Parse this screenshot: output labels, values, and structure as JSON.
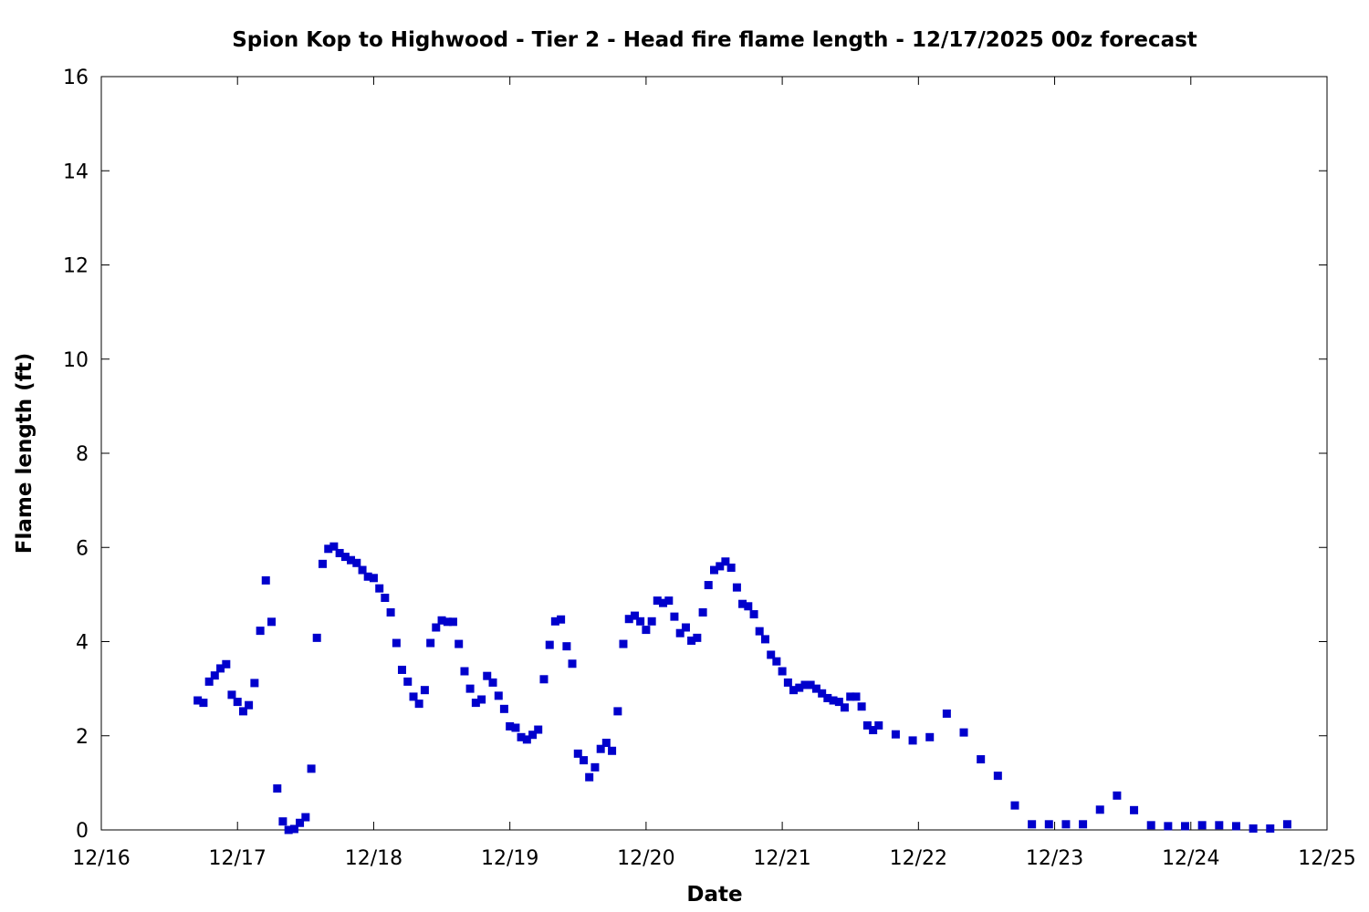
{
  "chart_data": {
    "type": "scatter",
    "title": "Spion Kop to Highwood - Tier 2 - Head fire flame length - 12/17/2025 00z forecast",
    "xlabel": "Date",
    "ylabel": "Flame length (ft)",
    "x_unit": "days since 12/16 00:00 (tick labels show dates)",
    "xlim": [
      0,
      9
    ],
    "ylim": [
      0,
      16
    ],
    "x_ticks": [
      {
        "value": 0,
        "label": "12/16"
      },
      {
        "value": 1,
        "label": "12/17"
      },
      {
        "value": 2,
        "label": "12/18"
      },
      {
        "value": 3,
        "label": "12/19"
      },
      {
        "value": 4,
        "label": "12/20"
      },
      {
        "value": 5,
        "label": "12/21"
      },
      {
        "value": 6,
        "label": "12/22"
      },
      {
        "value": 7,
        "label": "12/23"
      },
      {
        "value": 8,
        "label": "12/24"
      },
      {
        "value": 9,
        "label": "12/25"
      }
    ],
    "y_ticks": [
      {
        "value": 0,
        "label": "0"
      },
      {
        "value": 2,
        "label": "2"
      },
      {
        "value": 4,
        "label": "4"
      },
      {
        "value": 6,
        "label": "6"
      },
      {
        "value": 8,
        "label": "8"
      },
      {
        "value": 10,
        "label": "10"
      },
      {
        "value": 12,
        "label": "12"
      },
      {
        "value": 14,
        "label": "14"
      },
      {
        "value": 16,
        "label": "16"
      }
    ],
    "grid": false,
    "marker_color": "#0000cc",
    "series": [
      {
        "name": "",
        "points": [
          [
            0.708,
            2.75
          ],
          [
            0.75,
            2.7
          ],
          [
            0.792,
            3.15
          ],
          [
            0.833,
            3.28
          ],
          [
            0.875,
            3.43
          ],
          [
            0.917,
            3.52
          ],
          [
            0.958,
            2.87
          ],
          [
            1.0,
            2.72
          ],
          [
            1.042,
            2.52
          ],
          [
            1.083,
            2.65
          ],
          [
            1.125,
            3.12
          ],
          [
            1.167,
            4.23
          ],
          [
            1.208,
            5.3
          ],
          [
            1.25,
            4.42
          ],
          [
            1.292,
            0.88
          ],
          [
            1.333,
            0.18
          ],
          [
            1.375,
            0.0
          ],
          [
            1.417,
            0.02
          ],
          [
            1.458,
            0.15
          ],
          [
            1.5,
            0.27
          ],
          [
            1.542,
            1.3
          ],
          [
            1.583,
            4.08
          ],
          [
            1.625,
            5.65
          ],
          [
            1.667,
            5.97
          ],
          [
            1.708,
            6.02
          ],
          [
            1.75,
            5.88
          ],
          [
            1.792,
            5.8
          ],
          [
            1.833,
            5.73
          ],
          [
            1.875,
            5.67
          ],
          [
            1.917,
            5.52
          ],
          [
            1.958,
            5.38
          ],
          [
            2.0,
            5.35
          ],
          [
            2.042,
            5.13
          ],
          [
            2.083,
            4.93
          ],
          [
            2.125,
            4.62
          ],
          [
            2.167,
            3.97
          ],
          [
            2.208,
            3.4
          ],
          [
            2.25,
            3.15
          ],
          [
            2.292,
            2.83
          ],
          [
            2.333,
            2.68
          ],
          [
            2.375,
            2.97
          ],
          [
            2.417,
            3.97
          ],
          [
            2.458,
            4.3
          ],
          [
            2.5,
            4.45
          ],
          [
            2.542,
            4.42
          ],
          [
            2.583,
            4.42
          ],
          [
            2.625,
            3.95
          ],
          [
            2.667,
            3.37
          ],
          [
            2.708,
            3.0
          ],
          [
            2.75,
            2.7
          ],
          [
            2.792,
            2.77
          ],
          [
            2.833,
            3.27
          ],
          [
            2.875,
            3.13
          ],
          [
            2.917,
            2.85
          ],
          [
            2.958,
            2.57
          ],
          [
            3.0,
            2.2
          ],
          [
            3.042,
            2.17
          ],
          [
            3.083,
            1.97
          ],
          [
            3.125,
            1.92
          ],
          [
            3.167,
            2.02
          ],
          [
            3.208,
            2.13
          ],
          [
            3.25,
            3.2
          ],
          [
            3.292,
            3.93
          ],
          [
            3.333,
            4.43
          ],
          [
            3.375,
            4.47
          ],
          [
            3.417,
            3.9
          ],
          [
            3.458,
            3.53
          ],
          [
            3.5,
            1.62
          ],
          [
            3.542,
            1.48
          ],
          [
            3.583,
            1.12
          ],
          [
            3.625,
            1.33
          ],
          [
            3.667,
            1.72
          ],
          [
            3.708,
            1.85
          ],
          [
            3.75,
            1.68
          ],
          [
            3.792,
            2.52
          ],
          [
            3.833,
            3.95
          ],
          [
            3.875,
            4.48
          ],
          [
            3.917,
            4.55
          ],
          [
            3.958,
            4.43
          ],
          [
            4.0,
            4.25
          ],
          [
            4.042,
            4.43
          ],
          [
            4.083,
            4.87
          ],
          [
            4.125,
            4.82
          ],
          [
            4.167,
            4.87
          ],
          [
            4.208,
            4.53
          ],
          [
            4.25,
            4.18
          ],
          [
            4.292,
            4.3
          ],
          [
            4.333,
            4.02
          ],
          [
            4.375,
            4.08
          ],
          [
            4.417,
            4.62
          ],
          [
            4.458,
            5.2
          ],
          [
            4.5,
            5.52
          ],
          [
            4.542,
            5.6
          ],
          [
            4.583,
            5.7
          ],
          [
            4.625,
            5.57
          ],
          [
            4.667,
            5.15
          ],
          [
            4.708,
            4.8
          ],
          [
            4.75,
            4.75
          ],
          [
            4.792,
            4.58
          ],
          [
            4.833,
            4.22
          ],
          [
            4.875,
            4.05
          ],
          [
            4.917,
            3.72
          ],
          [
            4.958,
            3.58
          ],
          [
            5.0,
            3.37
          ],
          [
            5.042,
            3.13
          ],
          [
            5.083,
            2.97
          ],
          [
            5.125,
            3.02
          ],
          [
            5.167,
            3.08
          ],
          [
            5.208,
            3.08
          ],
          [
            5.25,
            3.0
          ],
          [
            5.292,
            2.9
          ],
          [
            5.333,
            2.8
          ],
          [
            5.375,
            2.75
          ],
          [
            5.417,
            2.72
          ],
          [
            5.458,
            2.6
          ],
          [
            5.5,
            2.83
          ],
          [
            5.542,
            2.83
          ],
          [
            5.583,
            2.62
          ],
          [
            5.625,
            2.22
          ],
          [
            5.667,
            2.12
          ],
          [
            5.708,
            2.22
          ],
          [
            5.833,
            2.03
          ],
          [
            5.958,
            1.9
          ],
          [
            6.083,
            1.97
          ],
          [
            6.208,
            2.47
          ],
          [
            6.333,
            2.07
          ],
          [
            6.458,
            1.5
          ],
          [
            6.583,
            1.15
          ],
          [
            6.708,
            0.52
          ],
          [
            6.833,
            0.12
          ],
          [
            6.958,
            0.12
          ],
          [
            7.083,
            0.12
          ],
          [
            7.208,
            0.12
          ],
          [
            7.333,
            0.43
          ],
          [
            7.458,
            0.73
          ],
          [
            7.583,
            0.42
          ],
          [
            7.708,
            0.1
          ],
          [
            7.833,
            0.08
          ],
          [
            7.958,
            0.08
          ],
          [
            8.083,
            0.1
          ],
          [
            8.208,
            0.1
          ],
          [
            8.333,
            0.08
          ],
          [
            8.458,
            0.03
          ],
          [
            8.583,
            0.03
          ],
          [
            8.708,
            0.12
          ]
        ]
      }
    ]
  }
}
